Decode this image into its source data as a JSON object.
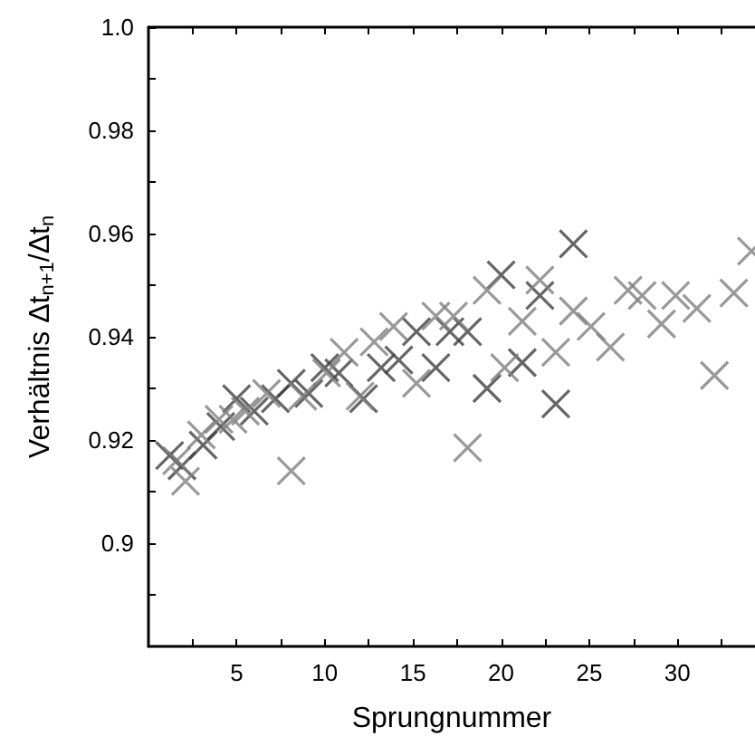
{
  "chart_data": {
    "type": "scatter",
    "xlabel": "Sprungnummer",
    "ylabel": "Verhältnis Δt$_{n+1}$/Δt$_{n}$",
    "xlim": [
      0,
      34.4
    ],
    "ylim": [
      0.88,
      1.0
    ],
    "xticks": [
      {
        "value": 2.5,
        "label": null
      },
      5,
      {
        "value": 7.5,
        "label": null
      },
      10,
      {
        "value": 12.5,
        "label": null
      },
      15,
      {
        "value": 17.5,
        "label": null
      },
      20,
      {
        "value": 22.5,
        "label": null
      },
      25,
      {
        "value": 27.5,
        "label": null
      },
      30,
      {
        "value": 32.5,
        "label": null
      }
    ],
    "yticks": [
      {
        "value": 0.89,
        "label": null
      },
      0.9,
      {
        "value": 0.91,
        "label": null
      },
      0.92,
      {
        "value": 0.93,
        "label": null
      },
      0.94,
      {
        "value": 0.95,
        "label": null
      },
      0.96,
      {
        "value": 0.97,
        "label": null
      },
      0.98,
      {
        "value": 0.99,
        "label": null
      },
      {
        "value": 1.0,
        "label": "1.0"
      }
    ],
    "marker": "cross",
    "grid": false,
    "series": [
      {
        "color": "#404040",
        "x": [
          1.2,
          1.9,
          3.1,
          4.1,
          5,
          6,
          7.2,
          8.1,
          9.1,
          10,
          10.8,
          12.2,
          13.2,
          14.2,
          15.2,
          16.3,
          17.1,
          18.1,
          19.2,
          20,
          21.2,
          22.2,
          23.1,
          24.1
        ],
        "values": [
          0.917,
          0.915,
          0.919,
          0.9226,
          0.928,
          0.9256,
          0.928,
          0.931,
          0.929,
          0.934,
          0.933,
          0.928,
          0.934,
          0.9355,
          0.941,
          0.934,
          0.941,
          0.941,
          0.93,
          0.952,
          0.935,
          0.948,
          0.927,
          0.958
        ]
      },
      {
        "color": "#808080",
        "x": [
          1.6,
          2.1,
          3,
          4,
          4.8,
          5.5,
          6.7,
          8.1,
          8.75,
          10.1,
          11.1,
          12,
          12.8,
          13.9,
          15.2,
          16.3,
          17.3,
          18.1,
          19.2,
          20.2,
          21.2,
          22.2,
          23.1,
          24.1,
          25.1,
          26.2,
          27.2,
          28,
          29.1,
          29.9,
          31.1,
          32.1,
          33.2,
          34.2
        ],
        "values": [
          0.916,
          0.912,
          0.921,
          0.924,
          0.924,
          0.9256,
          0.929,
          0.914,
          0.9285,
          0.933,
          0.937,
          0.9285,
          0.939,
          0.942,
          0.931,
          0.944,
          0.944,
          0.9185,
          0.949,
          0.934,
          0.943,
          0.951,
          0.937,
          0.945,
          0.942,
          0.938,
          0.949,
          0.948,
          0.9425,
          0.948,
          0.9455,
          0.9325,
          0.9485,
          0.9566
        ]
      }
    ]
  }
}
